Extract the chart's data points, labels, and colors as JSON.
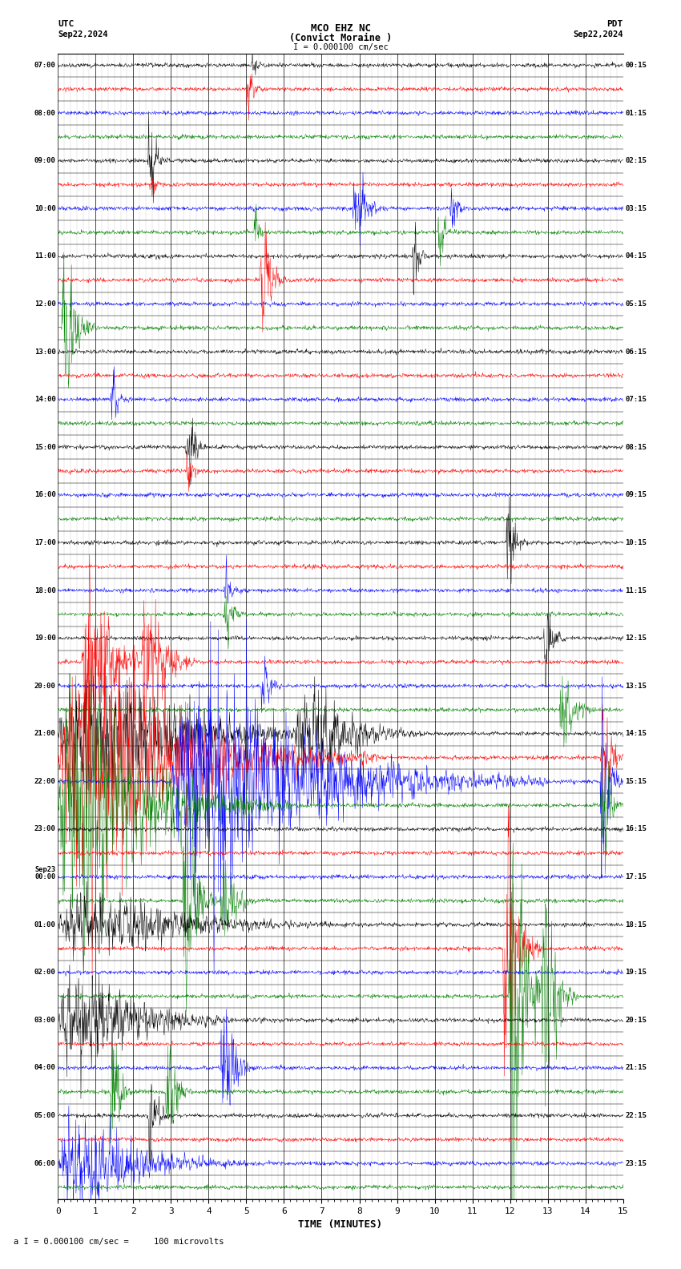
{
  "title_line1": "MCO EHZ NC",
  "title_line2": "(Convict Moraine )",
  "title_line3": "I = 0.000100 cm/sec",
  "top_left": "UTC",
  "top_left2": "Sep22,2024",
  "top_right": "PDT",
  "top_right2": "Sep22,2024",
  "bottom_label": "a I = 0.000100 cm/sec =     100 microvolts",
  "xlabel": "TIME (MINUTES)",
  "utc_labels": [
    "07:00",
    "",
    "08:00",
    "",
    "09:00",
    "",
    "10:00",
    "",
    "11:00",
    "",
    "12:00",
    "",
    "13:00",
    "",
    "14:00",
    "",
    "15:00",
    "",
    "16:00",
    "",
    "17:00",
    "",
    "18:00",
    "",
    "19:00",
    "",
    "20:00",
    "",
    "21:00",
    "",
    "22:00",
    "",
    "23:00",
    "",
    "Sep23\n00:00",
    "",
    "01:00",
    "",
    "02:00",
    "",
    "03:00",
    "",
    "04:00",
    "",
    "05:00",
    "",
    "06:00",
    ""
  ],
  "pdt_labels": [
    "00:15",
    "",
    "01:15",
    "",
    "02:15",
    "",
    "03:15",
    "",
    "04:15",
    "",
    "05:15",
    "",
    "06:15",
    "",
    "07:15",
    "",
    "08:15",
    "",
    "09:15",
    "",
    "10:15",
    "",
    "11:15",
    "",
    "12:15",
    "",
    "13:15",
    "",
    "14:15",
    "",
    "15:15",
    "",
    "16:15",
    "",
    "17:15",
    "",
    "18:15",
    "",
    "19:15",
    "",
    "20:15",
    "",
    "21:15",
    "",
    "22:15",
    "",
    "23:15",
    ""
  ],
  "n_rows": 48,
  "colors": [
    "black",
    "red",
    "blue",
    "green"
  ],
  "background": "white",
  "figsize": [
    8.5,
    15.84
  ],
  "dpi": 100,
  "seed": 12345
}
